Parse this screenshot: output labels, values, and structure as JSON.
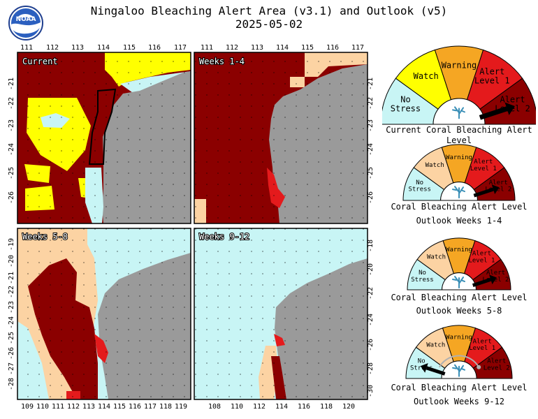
{
  "title": {
    "line1": "Ningaloo Bleaching Alert Area (v3.1) and Outlook (v5)",
    "line2": "2025-05-02"
  },
  "logo": {
    "text": "NOAA"
  },
  "colors": {
    "no_stress": "#c8f5f5",
    "watch": "#ffff00",
    "watch_light": "#fcd3a3",
    "warning": "#f5a623",
    "alert1": "#e41a1c",
    "alert2": "#8b0000",
    "land": "#9a9a9a"
  },
  "panels": [
    {
      "label": "Current"
    },
    {
      "label": "Weeks 1-4"
    },
    {
      "label": "Weeks 5-8"
    },
    {
      "label": "Weeks 9-12"
    }
  ],
  "axes": {
    "top_lon": [
      "111",
      "112",
      "113",
      "114",
      "115",
      "116",
      "117"
    ],
    "left_lat_top": [
      "-21",
      "-22",
      "-23",
      "-24",
      "-25",
      "-26"
    ],
    "right_lat_top": [
      "-21",
      "-22",
      "-23",
      "-24",
      "-25",
      "-26"
    ],
    "left_lat_bottom": [
      "-19",
      "-20",
      "-21",
      "-22",
      "-23",
      "-24",
      "-25",
      "-26",
      "-27",
      "-28"
    ],
    "right_lat_bottom": [
      "-18",
      "-20",
      "-22",
      "-24",
      "-26",
      "-28",
      "-30"
    ],
    "bottom_lon_left": [
      "109",
      "110",
      "111",
      "112",
      "113",
      "114",
      "115",
      "116",
      "117",
      "118",
      "119"
    ],
    "bottom_lon_right": [
      "108",
      "110",
      "112",
      "114",
      "116",
      "118",
      "120"
    ]
  },
  "gauges": [
    {
      "caption1": "Current Coral Bleaching Alert Level",
      "caption2": "",
      "pointer": "alert2",
      "watch_color": "#ffff00",
      "labels": {
        "no_stress": [
          "No",
          "Stress"
        ],
        "watch": [
          "Watch"
        ],
        "warning": [
          "Warning"
        ],
        "alert1": [
          "Alert",
          "Level 1"
        ],
        "alert2": [
          "Alert",
          "Level 2"
        ]
      }
    },
    {
      "caption1": "Coral Bleaching Alert Level",
      "caption2": "Outlook Weeks 1-4",
      "pointer": "alert2",
      "watch_color": "#fcd3a3",
      "labels": {
        "no_stress": [
          "No",
          "Stress"
        ],
        "watch": [
          "Watch"
        ],
        "warning": [
          "Warning"
        ],
        "alert1": [
          "Alert",
          "Level 1"
        ],
        "alert2": [
          "Alert",
          "Level 2"
        ]
      }
    },
    {
      "caption1": "Coral Bleaching Alert Level",
      "caption2": "Outlook Weeks 5-8",
      "pointer": "alert2",
      "watch_color": "#fcd3a3",
      "labels": {
        "no_stress": [
          "No",
          "Stress"
        ],
        "watch": [
          "Watch"
        ],
        "warning": [
          "Warning"
        ],
        "alert1": [
          "Alert",
          "Level 1"
        ],
        "alert2": [
          "Alert",
          "Level 2"
        ]
      }
    },
    {
      "caption1": "Coral Bleaching Alert Level",
      "caption2": "Outlook Weeks 9-12",
      "pointer": "no_stress",
      "watch_color": "#fcd3a3",
      "labels": {
        "no_stress": [
          "No",
          "Stress"
        ],
        "watch": [
          "Watch"
        ],
        "warning": [
          "Warning"
        ],
        "alert1": [
          "Alert",
          "Level 1"
        ],
        "alert2": [
          "Alert",
          "Level 2"
        ]
      }
    }
  ]
}
